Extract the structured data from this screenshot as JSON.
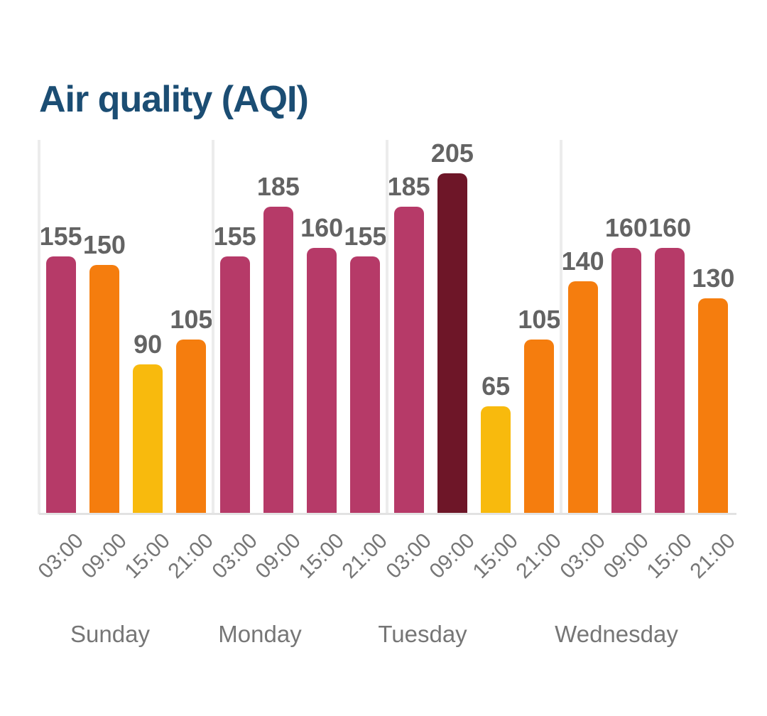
{
  "title": "Air quality (AQI)",
  "colors": {
    "title_text": "#1b4d73",
    "value_label_text": "#636363",
    "axis_label_text": "#767676",
    "grid_line": "#ececec",
    "baseline": "#e2e2e2",
    "background": "#ffffff"
  },
  "chart_data": {
    "type": "bar",
    "title": "Air quality (AQI)",
    "xlabel": "",
    "ylabel": "AQI",
    "ylim": [
      0,
      225
    ],
    "grid": "vertical day-separator lines only, no y-axis ticks",
    "legend": "none",
    "value_labels": "above each bar",
    "tick_label_rotation": -45,
    "palette": {
      "moderate": "#f8ba0d",
      "unhealthy_sensitive": "#f57d0e",
      "unhealthy": "#b63a68",
      "very_unhealthy": "#6e1628"
    },
    "groups": [
      {
        "day": "Sunday",
        "times": [
          "03:00",
          "09:00",
          "15:00",
          "21:00"
        ],
        "values": [
          155,
          150,
          90,
          105
        ],
        "levels": [
          "unhealthy",
          "unhealthy_sensitive",
          "moderate",
          "unhealthy_sensitive"
        ]
      },
      {
        "day": "Monday",
        "times": [
          "03:00",
          "09:00",
          "15:00",
          "21:00"
        ],
        "values": [
          155,
          185,
          160,
          155
        ],
        "levels": [
          "unhealthy",
          "unhealthy",
          "unhealthy",
          "unhealthy"
        ]
      },
      {
        "day": "Tuesday",
        "times": [
          "03:00",
          "09:00",
          "15:00",
          "21:00"
        ],
        "values": [
          185,
          205,
          65,
          105
        ],
        "levels": [
          "unhealthy",
          "very_unhealthy",
          "moderate",
          "unhealthy_sensitive"
        ]
      },
      {
        "day": "Wednesday",
        "times": [
          "03:00",
          "09:00",
          "15:00",
          "21:00"
        ],
        "values": [
          140,
          160,
          160,
          130
        ],
        "levels": [
          "unhealthy_sensitive",
          "unhealthy",
          "unhealthy",
          "unhealthy_sensitive"
        ]
      }
    ]
  }
}
